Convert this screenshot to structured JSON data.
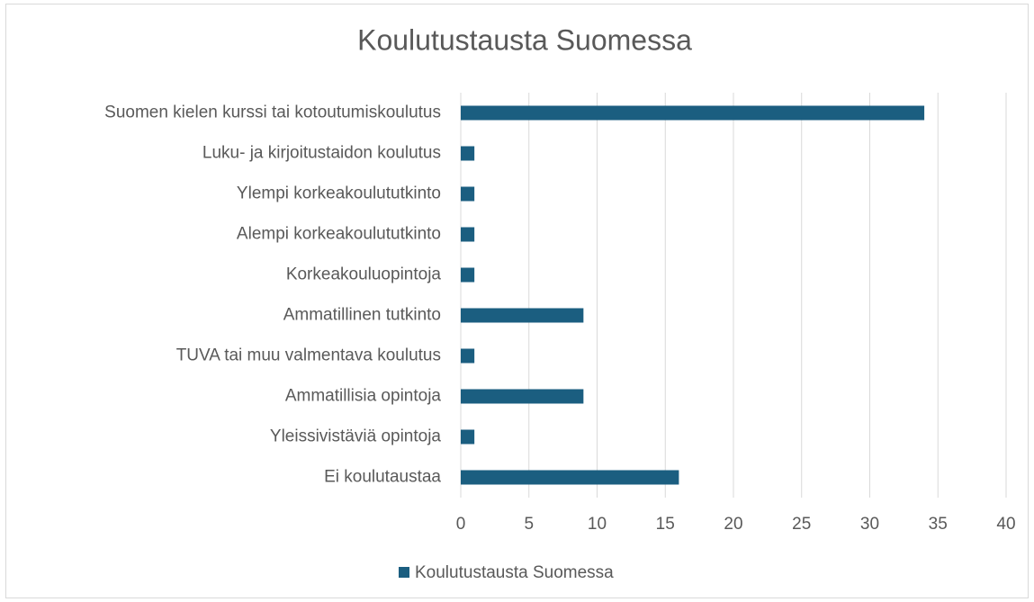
{
  "chart_data": {
    "type": "bar",
    "orientation": "horizontal",
    "title": "Koulutustausta Suomessa",
    "categories": [
      "Suomen kielen kurssi tai kotoutumiskoulutus",
      "Luku- ja kirjoitustaidon koulutus",
      "Ylempi korkeakoulututkinto",
      "Alempi korkeakoulututkinto",
      "Korkeakouluopintoja",
      "Ammatillinen tutkinto",
      "TUVA tai muu valmentava koulutus",
      "Ammatillisia opintoja",
      "Yleissivistäviä opintoja",
      "Ei koulutaustaa"
    ],
    "series": [
      {
        "name": "Koulutustausta Suomessa",
        "color": "#1b5e80",
        "values": [
          34,
          1,
          1,
          1,
          1,
          9,
          1,
          9,
          1,
          16
        ]
      }
    ],
    "xlim": [
      0,
      40
    ],
    "xticks": [
      0,
      5,
      10,
      15,
      20,
      25,
      30,
      35,
      40
    ],
    "grid": true,
    "legend": "bottom"
  }
}
